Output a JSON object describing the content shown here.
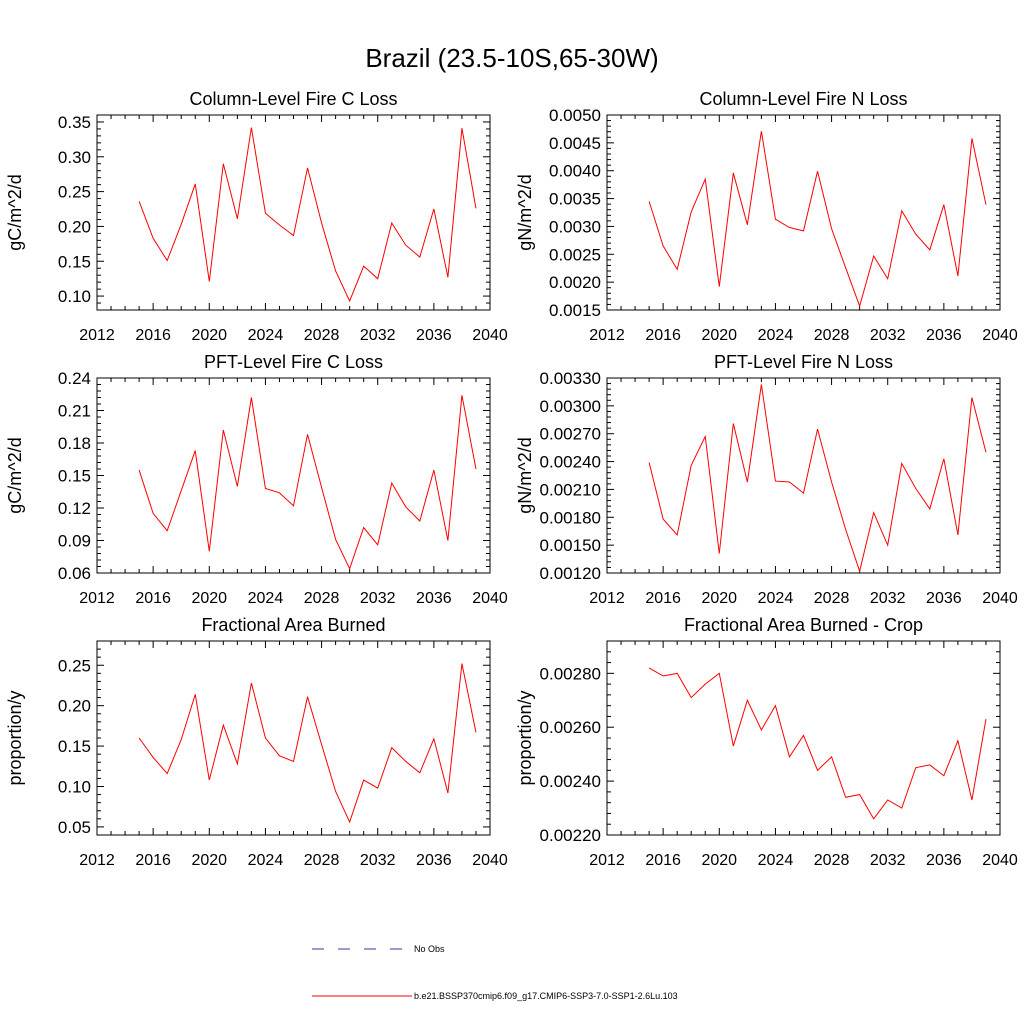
{
  "figure_title": "Brazil (23.5-10S,65-30W)",
  "legend": {
    "obs_label": "No Obs",
    "model_label": "b.e21.BSSP370cmip6.f09_g17.CMIP6-SSP3-7.0-SSP1-2.6Lu.103",
    "obs_color": "#3a3a9a",
    "model_color": "#ff0000"
  },
  "chart_data": [
    {
      "type": "line",
      "title": "Column-Level Fire C Loss",
      "ylabel": "gC/m^2/d",
      "xlim": [
        2012,
        2040
      ],
      "ylim": [
        0.08,
        0.36
      ],
      "yticks": [
        0.1,
        0.15,
        0.2,
        0.25,
        0.3,
        0.35
      ],
      "ytick_labels": [
        "0.10",
        "0.15",
        "0.20",
        "0.25",
        "0.30",
        "0.35"
      ],
      "xticks": [
        2012,
        2016,
        2020,
        2024,
        2028,
        2032,
        2036,
        2040
      ],
      "x": [
        2015,
        2016,
        2017,
        2018,
        2019,
        2020,
        2021,
        2022,
        2023,
        2024,
        2025,
        2026,
        2027,
        2028,
        2029,
        2030,
        2031,
        2032,
        2033,
        2034,
        2035,
        2036,
        2037,
        2038,
        2039
      ],
      "series": [
        {
          "name": "b.e21.BSSP370cmip6.f09_g17.CMIP6-SSP3-7.0-SSP1-2.6Lu.103",
          "values": [
            0.236,
            0.183,
            0.151,
            0.203,
            0.261,
            0.121,
            0.29,
            0.211,
            0.342,
            0.219,
            0.202,
            0.187,
            0.284,
            0.205,
            0.136,
            0.093,
            0.143,
            0.125,
            0.205,
            0.173,
            0.156,
            0.225,
            0.127,
            0.341,
            0.226
          ]
        }
      ]
    },
    {
      "type": "line",
      "title": "Column-Level Fire N Loss",
      "ylabel": "gN/m^2/d",
      "xlim": [
        2012,
        2040
      ],
      "ylim": [
        0.0015,
        0.005
      ],
      "yticks": [
        0.0015,
        0.002,
        0.0025,
        0.003,
        0.0035,
        0.004,
        0.0045,
        0.005
      ],
      "ytick_labels": [
        "0.0015",
        "0.0020",
        "0.0025",
        "0.0030",
        "0.0035",
        "0.0040",
        "0.0045",
        "0.0050"
      ],
      "xticks": [
        2012,
        2016,
        2020,
        2024,
        2028,
        2032,
        2036,
        2040
      ],
      "x": [
        2015,
        2016,
        2017,
        2018,
        2019,
        2020,
        2021,
        2022,
        2023,
        2024,
        2025,
        2026,
        2027,
        2028,
        2029,
        2030,
        2031,
        2032,
        2033,
        2034,
        2035,
        2036,
        2037,
        2038,
        2039
      ],
      "series": [
        {
          "name": "b.e21.BSSP370cmip6.f09_g17.CMIP6-SSP3-7.0-SSP1-2.6Lu.103",
          "values": [
            0.00345,
            0.00265,
            0.00223,
            0.00326,
            0.00385,
            0.00192,
            0.00396,
            0.00303,
            0.00471,
            0.00313,
            0.00298,
            0.00292,
            0.00399,
            0.00296,
            0.00226,
            0.00157,
            0.00247,
            0.00206,
            0.00328,
            0.00286,
            0.00258,
            0.00339,
            0.00211,
            0.00458,
            0.00339
          ]
        }
      ]
    },
    {
      "type": "line",
      "title": "PFT-Level Fire C Loss",
      "ylabel": "gC/m^2/d",
      "xlim": [
        2012,
        2040
      ],
      "ylim": [
        0.06,
        0.24
      ],
      "yticks": [
        0.06,
        0.09,
        0.12,
        0.15,
        0.18,
        0.21,
        0.24
      ],
      "ytick_labels": [
        "0.06",
        "0.09",
        "0.12",
        "0.15",
        "0.18",
        "0.21",
        "0.24"
      ],
      "xticks": [
        2012,
        2016,
        2020,
        2024,
        2028,
        2032,
        2036,
        2040
      ],
      "x": [
        2015,
        2016,
        2017,
        2018,
        2019,
        2020,
        2021,
        2022,
        2023,
        2024,
        2025,
        2026,
        2027,
        2028,
        2029,
        2030,
        2031,
        2032,
        2033,
        2034,
        2035,
        2036,
        2037,
        2038,
        2039
      ],
      "series": [
        {
          "name": "b.e21.BSSP370cmip6.f09_g17.CMIP6-SSP3-7.0-SSP1-2.6Lu.103",
          "values": [
            0.155,
            0.115,
            0.099,
            0.136,
            0.173,
            0.08,
            0.192,
            0.14,
            0.222,
            0.138,
            0.134,
            0.122,
            0.188,
            0.139,
            0.091,
            0.064,
            0.102,
            0.086,
            0.143,
            0.121,
            0.108,
            0.155,
            0.09,
            0.224,
            0.156
          ]
        }
      ]
    },
    {
      "type": "line",
      "title": "PFT-Level Fire N Loss",
      "ylabel": "gN/m^2/d",
      "xlim": [
        2012,
        2040
      ],
      "ylim": [
        0.0012,
        0.0033
      ],
      "yticks": [
        0.0012,
        0.0015,
        0.0018,
        0.0021,
        0.0024,
        0.0027,
        0.003,
        0.0033
      ],
      "ytick_labels": [
        "0.00120",
        "0.00150",
        "0.00180",
        "0.00210",
        "0.00240",
        "0.00270",
        "0.00300",
        "0.00330"
      ],
      "xticks": [
        2012,
        2016,
        2020,
        2024,
        2028,
        2032,
        2036,
        2040
      ],
      "x": [
        2015,
        2016,
        2017,
        2018,
        2019,
        2020,
        2021,
        2022,
        2023,
        2024,
        2025,
        2026,
        2027,
        2028,
        2029,
        2030,
        2031,
        2032,
        2033,
        2034,
        2035,
        2036,
        2037,
        2038,
        2039
      ],
      "series": [
        {
          "name": "b.e21.BSSP370cmip6.f09_g17.CMIP6-SSP3-7.0-SSP1-2.6Lu.103",
          "values": [
            0.00239,
            0.00178,
            0.00161,
            0.00236,
            0.00267,
            0.00141,
            0.00281,
            0.00218,
            0.00323,
            0.00219,
            0.00218,
            0.00206,
            0.00275,
            0.00218,
            0.00167,
            0.00122,
            0.00185,
            0.0015,
            0.00238,
            0.00211,
            0.00189,
            0.00243,
            0.00161,
            0.00309,
            0.0025
          ]
        }
      ]
    },
    {
      "type": "line",
      "title": "Fractional Area Burned",
      "ylabel": "proportion/y",
      "xlim": [
        2012,
        2040
      ],
      "ylim": [
        0.04,
        0.28
      ],
      "yticks": [
        0.05,
        0.1,
        0.15,
        0.2,
        0.25
      ],
      "ytick_labels": [
        "0.05",
        "0.10",
        "0.15",
        "0.20",
        "0.25"
      ],
      "xticks": [
        2012,
        2016,
        2020,
        2024,
        2028,
        2032,
        2036,
        2040
      ],
      "x": [
        2015,
        2016,
        2017,
        2018,
        2019,
        2020,
        2021,
        2022,
        2023,
        2024,
        2025,
        2026,
        2027,
        2028,
        2029,
        2030,
        2031,
        2032,
        2033,
        2034,
        2035,
        2036,
        2037,
        2038,
        2039
      ],
      "series": [
        {
          "name": "b.e21.BSSP370cmip6.f09_g17.CMIP6-SSP3-7.0-SSP1-2.6Lu.103",
          "values": [
            0.16,
            0.136,
            0.116,
            0.158,
            0.214,
            0.108,
            0.176,
            0.128,
            0.228,
            0.16,
            0.138,
            0.131,
            0.211,
            0.152,
            0.094,
            0.056,
            0.108,
            0.098,
            0.148,
            0.131,
            0.117,
            0.159,
            0.092,
            0.252,
            0.167
          ]
        }
      ]
    },
    {
      "type": "line",
      "title": "Fractional Area Burned - Crop",
      "ylabel": "proportion/y",
      "xlim": [
        2012,
        2040
      ],
      "ylim": [
        0.0022,
        0.00292
      ],
      "yticks": [
        0.0022,
        0.0024,
        0.0026,
        0.0028
      ],
      "ytick_labels": [
        "0.00220",
        "0.00240",
        "0.00260",
        "0.00280"
      ],
      "xticks": [
        2012,
        2016,
        2020,
        2024,
        2028,
        2032,
        2036,
        2040
      ],
      "x": [
        2015,
        2016,
        2017,
        2018,
        2019,
        2020,
        2021,
        2022,
        2023,
        2024,
        2025,
        2026,
        2027,
        2028,
        2029,
        2030,
        2031,
        2032,
        2033,
        2034,
        2035,
        2036,
        2037,
        2038,
        2039
      ],
      "series": [
        {
          "name": "b.e21.BSSP370cmip6.f09_g17.CMIP6-SSP3-7.0-SSP1-2.6Lu.103",
          "values": [
            0.00282,
            0.00279,
            0.0028,
            0.00271,
            0.00276,
            0.0028,
            0.00253,
            0.0027,
            0.00259,
            0.00268,
            0.00249,
            0.00257,
            0.00244,
            0.00249,
            0.00234,
            0.00235,
            0.00226,
            0.00233,
            0.0023,
            0.00245,
            0.00246,
            0.00242,
            0.00255,
            0.00233,
            0.00263
          ]
        }
      ]
    }
  ]
}
